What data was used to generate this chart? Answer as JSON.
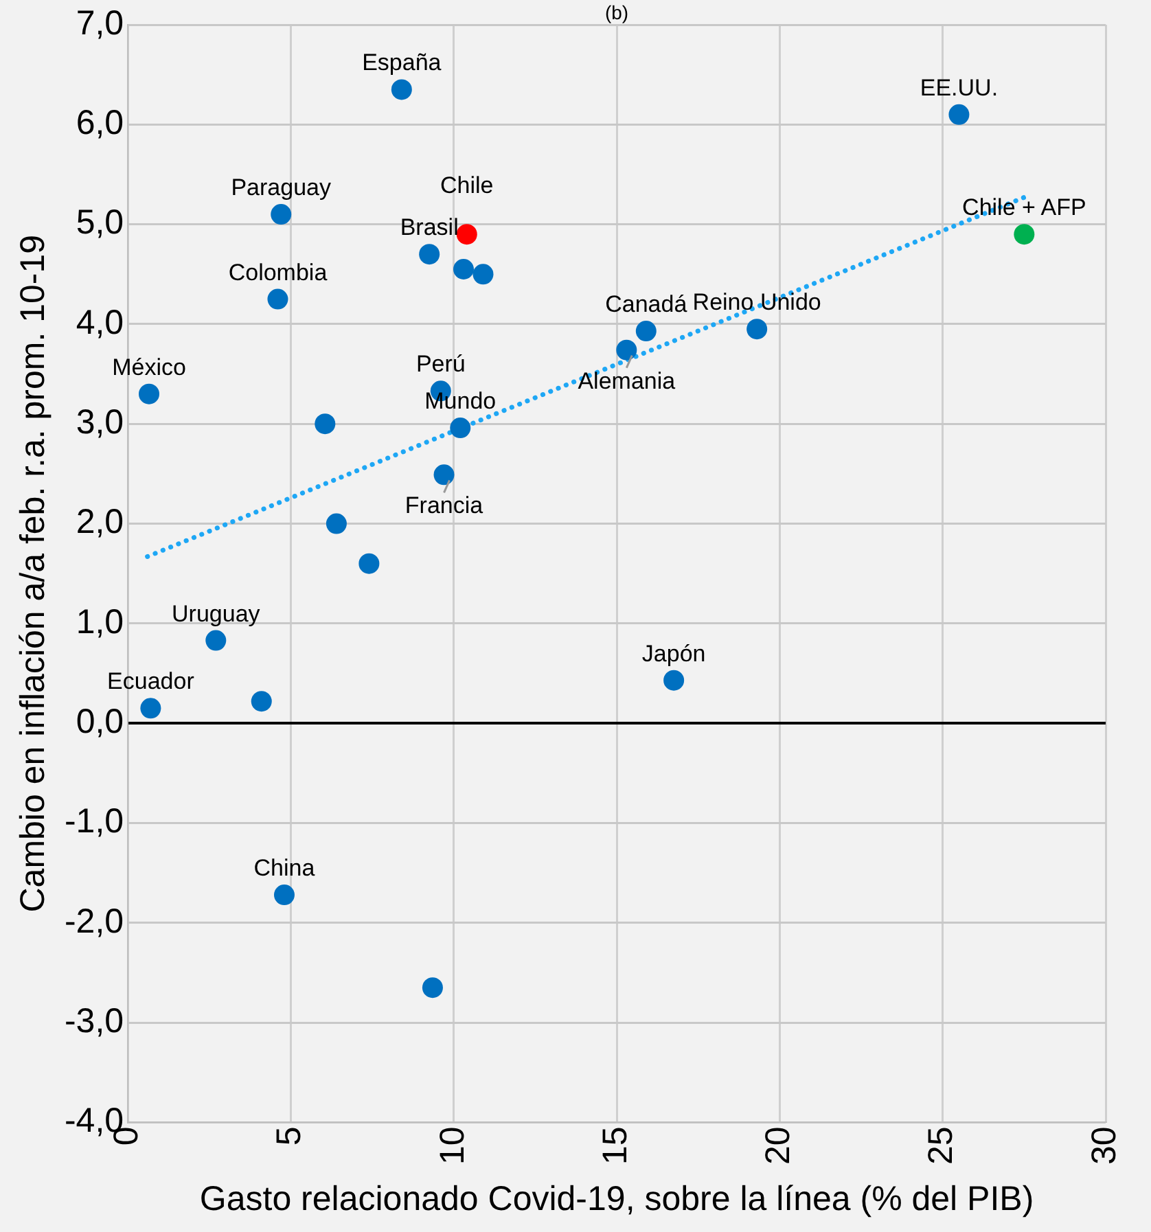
{
  "chart_data": {
    "type": "scatter",
    "title": "(b)",
    "xlabel": "Gasto relacionado Covid-19, sobre la línea (% del PIB)",
    "ylabel": "Cambio en inflación a/a feb. r.a. prom. 10-19",
    "xlim": [
      0,
      30
    ],
    "xticks": [
      0,
      5,
      10,
      15,
      20,
      25,
      30
    ],
    "ylim": [
      -4,
      7
    ],
    "yticks": [
      {
        "value": -4,
        "label": "-4,0"
      },
      {
        "value": -3,
        "label": "-3,0"
      },
      {
        "value": -2,
        "label": "-2,0"
      },
      {
        "value": -1,
        "label": "-1,0"
      },
      {
        "value": 0,
        "label": "0,0"
      },
      {
        "value": 1,
        "label": "1,0"
      },
      {
        "value": 2,
        "label": "2,0"
      },
      {
        "value": 3,
        "label": "3,0"
      },
      {
        "value": 4,
        "label": "4,0"
      },
      {
        "value": 5,
        "label": "5,0"
      },
      {
        "value": 6,
        "label": "6,0"
      },
      {
        "value": 7,
        "label": "7,0"
      }
    ],
    "grid": true,
    "legend": false,
    "marker": "circle",
    "series": [
      {
        "x": [
          8.4,
          25.5,
          4.7,
          10.4,
          27.5,
          9.25,
          10.3,
          10.9,
          4.6,
          15.9,
          19.3,
          15.3,
          0.65,
          9.6,
          6.05,
          10.2,
          9.7,
          6.4,
          7.4,
          2.7,
          0.7,
          4.1,
          16.75,
          4.8,
          9.35
        ],
        "values": [
          6.35,
          6.1,
          5.1,
          4.9,
          4.9,
          4.7,
          4.55,
          4.5,
          4.25,
          3.93,
          3.95,
          3.74,
          3.3,
          3.33,
          3.0,
          2.96,
          2.49,
          2.0,
          1.6,
          0.83,
          0.15,
          0.22,
          0.43,
          -1.72,
          -2.65
        ],
        "colors": [
          "#0070c0",
          "#0070c0",
          "#0070c0",
          "#ff0000",
          "#00b050",
          "#0070c0",
          "#0070c0",
          "#0070c0",
          "#0070c0",
          "#0070c0",
          "#0070c0",
          "#0070c0",
          "#0070c0",
          "#0070c0",
          "#0070c0",
          "#0070c0",
          "#0070c0",
          "#0070c0",
          "#0070c0",
          "#0070c0",
          "#0070c0",
          "#0070c0",
          "#0070c0",
          "#0070c0",
          "#0070c0"
        ]
      },
      {
        "type": "line",
        "x": [
          0.6,
          27.5
        ],
        "values": [
          1.67,
          5.27
        ],
        "color": "#1ea7f5",
        "line_style": "dotted",
        "marker": "none"
      }
    ],
    "annotations": [
      {
        "text": "España",
        "x": 8.4,
        "y": 6.35
      },
      {
        "text": "EE.UU.",
        "x": 25.5,
        "y": 6.1
      },
      {
        "text": "Paraguay",
        "x": 4.7,
        "y": 5.1
      },
      {
        "text": "Brasil",
        "x": 9.25,
        "y": 4.7
      },
      {
        "text": "Chile",
        "x": 10.4,
        "y": 4.9
      },
      {
        "text": "Chile + AFP",
        "x": 27.5,
        "y": 4.9
      },
      {
        "text": "Colombia",
        "x": 4.6,
        "y": 4.25
      },
      {
        "text": "Canadá",
        "x": 15.9,
        "y": 3.93
      },
      {
        "text": "Reino Unido",
        "x": 19.3,
        "y": 3.95
      },
      {
        "text": "Alemania",
        "x": 15.3,
        "y": 3.74
      },
      {
        "text": "México",
        "x": 0.65,
        "y": 3.3
      },
      {
        "text": "Perú",
        "x": 9.6,
        "y": 3.33
      },
      {
        "text": "Mundo",
        "x": 10.2,
        "y": 2.96
      },
      {
        "text": "Francia",
        "x": 9.7,
        "y": 2.49
      },
      {
        "text": "Uruguay",
        "x": 2.7,
        "y": 0.83
      },
      {
        "text": "Ecuador",
        "x": 0.7,
        "y": 0.15
      },
      {
        "text": "Japón",
        "x": 16.75,
        "y": 0.43
      },
      {
        "text": "China",
        "x": 4.8,
        "y": -1.72
      }
    ]
  }
}
